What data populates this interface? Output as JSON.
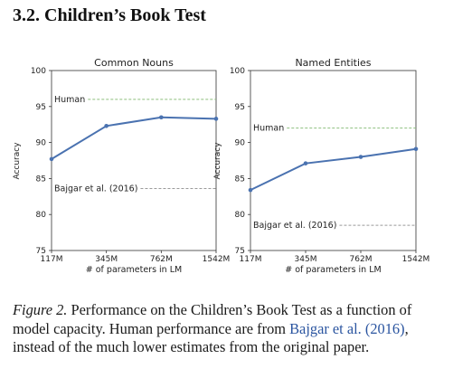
{
  "section": {
    "heading": "3.2. Children’s Book Test"
  },
  "figure": {
    "caption": {
      "label": "Figure 2.",
      "part1": " Performance on the Children’s Book Test as a function of model capacity. Human performance are from ",
      "citation": "Bajgar et al. (2016)",
      "part2": ", instead of the much lower estimates from the original paper."
    }
  },
  "colors": {
    "line": "#4a72b0",
    "reference": "#8dbf7d",
    "reference2": "#9a9a9a",
    "axis": "#333333"
  },
  "chart_data": [
    {
      "type": "line",
      "title": "Common Nouns",
      "xlabel": "# of parameters in LM",
      "ylabel": "Accuracy",
      "x_ticks": [
        "117M",
        "345M",
        "762M",
        "1542M"
      ],
      "y_ticks": [
        75,
        80,
        85,
        90,
        95,
        100
      ],
      "ylim": [
        75,
        100
      ],
      "series": [
        {
          "values": [
            87.7,
            92.3,
            93.5,
            93.3
          ]
        }
      ],
      "references": [
        {
          "label": "Human",
          "value": 96.0,
          "color": "green"
        },
        {
          "label": "Bajgar et al. (2016)",
          "value": 83.6,
          "color": "gray"
        }
      ]
    },
    {
      "type": "line",
      "title": "Named Entities",
      "xlabel": "# of parameters in LM",
      "ylabel": "Accuracy",
      "x_ticks": [
        "117M",
        "345M",
        "762M",
        "1542M"
      ],
      "y_ticks": [
        75,
        80,
        85,
        90,
        95,
        100
      ],
      "ylim": [
        75,
        100
      ],
      "series": [
        {
          "values": [
            83.4,
            87.1,
            88.0,
            89.1
          ]
        }
      ],
      "references": [
        {
          "label": "Human",
          "value": 92.0,
          "color": "green"
        },
        {
          "label": "Bajgar et al. (2016)",
          "value": 78.5,
          "color": "gray"
        }
      ]
    }
  ]
}
